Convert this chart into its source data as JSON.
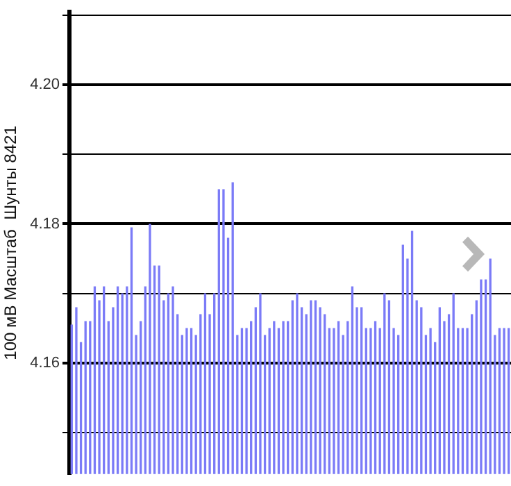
{
  "chart_data": {
    "type": "bar",
    "ylabel": "100 мВ Масштаб  Шунты 8421",
    "categories": [
      null,
      null,
      null,
      null,
      null,
      null,
      null,
      null,
      null,
      null,
      null,
      null,
      null,
      null,
      null,
      null,
      null,
      null,
      null,
      null,
      null,
      null,
      null,
      null,
      null,
      null,
      null,
      null,
      null,
      null,
      null,
      null,
      null,
      null,
      null,
      null,
      null,
      null,
      null,
      null,
      null,
      null,
      null,
      null,
      null,
      null,
      null,
      null,
      null,
      null,
      null,
      null,
      null,
      null,
      null,
      null,
      null,
      null,
      null,
      null,
      null,
      null,
      null,
      null,
      null,
      null,
      null,
      null,
      null,
      null,
      null,
      null,
      null,
      null,
      null,
      null,
      null,
      null,
      null,
      null,
      null,
      null,
      null,
      null,
      null,
      null,
      null,
      null,
      null,
      null,
      null,
      null,
      null,
      null,
      null,
      null
    ],
    "values": [
      4.1655,
      4.168,
      4.163,
      4.166,
      4.166,
      4.171,
      4.169,
      4.171,
      4.166,
      4.168,
      4.171,
      4.17,
      4.171,
      4.1795,
      4.164,
      4.166,
      4.171,
      4.18,
      4.174,
      4.174,
      4.169,
      4.17,
      4.171,
      4.167,
      4.164,
      4.165,
      4.165,
      4.164,
      4.167,
      4.17,
      4.167,
      4.17,
      4.185,
      4.185,
      4.178,
      4.186,
      4.164,
      4.165,
      4.165,
      4.166,
      4.168,
      4.17,
      4.164,
      4.165,
      4.166,
      4.165,
      4.166,
      4.166,
      4.169,
      4.17,
      4.168,
      4.167,
      4.169,
      4.169,
      4.168,
      4.167,
      4.165,
      4.165,
      4.166,
      4.164,
      4.166,
      4.171,
      4.168,
      4.168,
      4.165,
      4.165,
      4.166,
      4.165,
      4.17,
      4.169,
      4.165,
      4.164,
      4.177,
      4.175,
      4.179,
      4.169,
      4.168,
      4.164,
      4.165,
      4.163,
      4.168,
      4.166,
      4.167,
      4.17,
      4.165,
      4.165,
      4.165,
      4.167,
      4.169,
      4.172,
      4.172,
      4.175,
      4.164,
      4.165,
      4.165,
      4.165
    ],
    "color": "#7b7bf7",
    "ylim": [
      4.144,
      4.2105
    ],
    "yticks": [
      {
        "value": 4.15,
        "label": null
      },
      {
        "value": 4.16,
        "label": "4.16"
      },
      {
        "value": 4.17,
        "label": null
      },
      {
        "value": 4.18,
        "label": "4.18"
      },
      {
        "value": 4.19,
        "label": null
      },
      {
        "value": 4.2,
        "label": "4.20"
      },
      {
        "value": 4.21,
        "label": null
      }
    ],
    "grid": "y",
    "tick_labels": "y",
    "legend": false
  }
}
